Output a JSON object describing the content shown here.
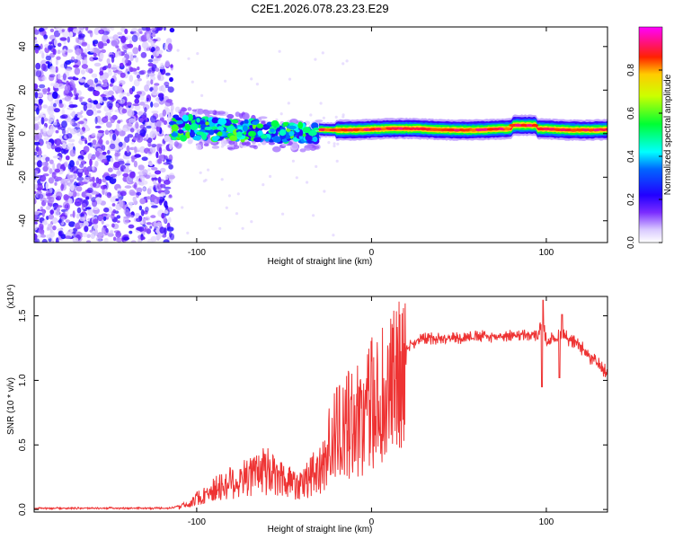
{
  "title": "C2E1.2026.078.23.23.E29",
  "chart_data": [
    {
      "type": "heatmap",
      "xlabel": "Height of straight line (km)",
      "ylabel": "Frequency (Hz)",
      "xlim": [
        -193,
        135
      ],
      "ylim": [
        -50,
        49
      ],
      "xticks": [
        -100,
        0,
        100
      ],
      "xtick_labels": [
        "-100",
        "0",
        "100"
      ],
      "yticks": [
        -40,
        -20,
        0,
        20,
        40
      ],
      "ytick_labels": [
        "-40",
        "-20",
        "0",
        "20",
        "40"
      ],
      "colorbar": {
        "label": "Normalized spectral amplitude",
        "range": [
          0,
          1
        ],
        "ticks": [
          0.0,
          0.2,
          0.4,
          0.6,
          0.8
        ],
        "tick_labels": [
          "0.0",
          "0.2",
          "0.4",
          "0.6",
          "0.8"
        ],
        "colormap": [
          "#ffffff",
          "#b088ff",
          "#5500ff",
          "#0000ff",
          "#00ffff",
          "#00ff00",
          "#ffff00",
          "#ff0000",
          "#ff00ff"
        ]
      },
      "regions": [
        {
          "x_range": [
            -193,
            -114
          ],
          "freq_range": [
            -50,
            49
          ],
          "amplitude": "0.05-0.25",
          "pattern": "speckled noise"
        },
        {
          "x_range": [
            -114,
            -30
          ],
          "freq_center": 3,
          "freq_spread": 12,
          "amplitude": "0.2-0.6",
          "pattern": "scattered blobs, drifting down"
        },
        {
          "x_range": [
            -30,
            135
          ],
          "freq_center": 2,
          "freq_spread": 3,
          "amplitude": "0.7-0.95",
          "pattern": "narrow band"
        }
      ]
    },
    {
      "type": "line",
      "xlabel": "Height of straight line (km)",
      "ylabel": "SNR (10 * v/v)",
      "y_scale_label": "(x10⁴)",
      "xlim": [
        -193,
        135
      ],
      "ylim": [
        -0.02,
        1.65
      ],
      "xticks": [
        -100,
        0,
        100
      ],
      "xtick_labels": [
        "-100",
        "0",
        "100"
      ],
      "yticks": [
        0.0,
        0.5,
        1.0,
        1.5
      ],
      "ytick_labels": [
        "0.0",
        "0.5",
        "1.0",
        "1.5"
      ],
      "color": "#ee3333",
      "series": [
        {
          "name": "SNR",
          "x": [
            -193,
            -150,
            -115,
            -105,
            -100,
            -90,
            -80,
            -70,
            -60,
            -55,
            -50,
            -45,
            -40,
            -35,
            -30,
            -25,
            -20,
            -15,
            -10,
            -5,
            0,
            5,
            10,
            15,
            20,
            25,
            30,
            40,
            50,
            60,
            70,
            80,
            90,
            95,
            98,
            100,
            105,
            110,
            115,
            120,
            125,
            130,
            135
          ],
          "y": [
            0.01,
            0.01,
            0.01,
            0.05,
            0.1,
            0.18,
            0.25,
            0.3,
            0.35,
            0.3,
            0.28,
            0.25,
            0.25,
            0.3,
            0.35,
            0.55,
            0.7,
            0.75,
            0.8,
            0.85,
            0.95,
            1.0,
            1.05,
            1.15,
            1.25,
            1.3,
            1.32,
            1.33,
            1.33,
            1.34,
            1.34,
            1.35,
            1.35,
            1.34,
            1.45,
            1.3,
            1.33,
            1.35,
            1.3,
            1.25,
            1.18,
            1.12,
            1.05
          ]
        }
      ]
    }
  ]
}
